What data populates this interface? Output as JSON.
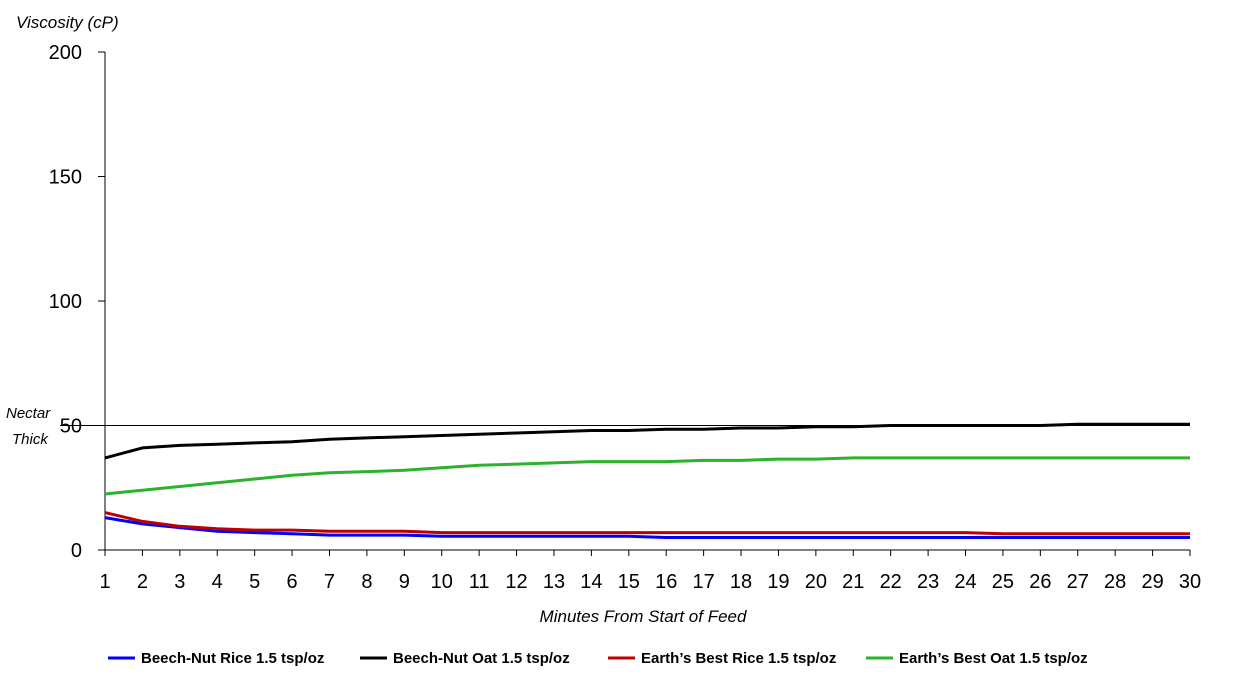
{
  "chart_data": {
    "type": "line",
    "title": "",
    "xlabel": "Minutes From Start of Feed",
    "ylabel": "Viscosity (cP)",
    "ylim": [
      0,
      200
    ],
    "yticks": [
      0,
      50,
      100,
      150,
      200
    ],
    "x": [
      1,
      2,
      3,
      4,
      5,
      6,
      7,
      8,
      9,
      10,
      11,
      12,
      13,
      14,
      15,
      16,
      17,
      18,
      19,
      20,
      21,
      22,
      23,
      24,
      25,
      26,
      27,
      28,
      29,
      30
    ],
    "grid": false,
    "legend_position": "bottom",
    "reference_line": {
      "y": 50,
      "label_line1": "Nectar",
      "label_line2": "Thick"
    },
    "series": [
      {
        "name": "Beech-Nut Rice 1.5 tsp/oz",
        "color": "#0000FF",
        "values": [
          13,
          10.5,
          9,
          7.5,
          7,
          6.5,
          6,
          6,
          6,
          5.5,
          5.5,
          5.5,
          5.5,
          5.5,
          5.5,
          5,
          5,
          5,
          5,
          5,
          5,
          5,
          5,
          5,
          5,
          5,
          5,
          5,
          5,
          5
        ]
      },
      {
        "name": "Beech-Nut Oat 1.5 tsp/oz",
        "color": "#000000",
        "values": [
          37,
          41,
          42,
          42.5,
          43,
          43.5,
          44.5,
          45,
          45.5,
          46,
          46.5,
          47,
          47.5,
          48,
          48,
          48.5,
          48.5,
          49,
          49,
          49.5,
          49.5,
          50,
          50,
          50,
          50,
          50,
          50.5,
          50.5,
          50.5,
          50.5
        ]
      },
      {
        "name": "Earth’s Best Rice 1.5 tsp/oz",
        "color": "#C00000",
        "values": [
          15,
          11.5,
          9.5,
          8.5,
          8,
          8,
          7.5,
          7.5,
          7.5,
          7,
          7,
          7,
          7,
          7,
          7,
          7,
          7,
          7,
          7,
          7,
          7,
          7,
          7,
          7,
          6.5,
          6.5,
          6.5,
          6.5,
          6.5,
          6.5
        ]
      },
      {
        "name": "Earth’s Best Oat 1.5 tsp/oz",
        "color": "#2CB22C",
        "values": [
          22.5,
          24,
          25.5,
          27,
          28.5,
          30,
          31,
          31.5,
          32,
          33,
          34,
          34.5,
          35,
          35.5,
          35.5,
          35.5,
          36,
          36,
          36.5,
          36.5,
          37,
          37,
          37,
          37,
          37,
          37,
          37,
          37,
          37,
          37
        ]
      }
    ]
  }
}
